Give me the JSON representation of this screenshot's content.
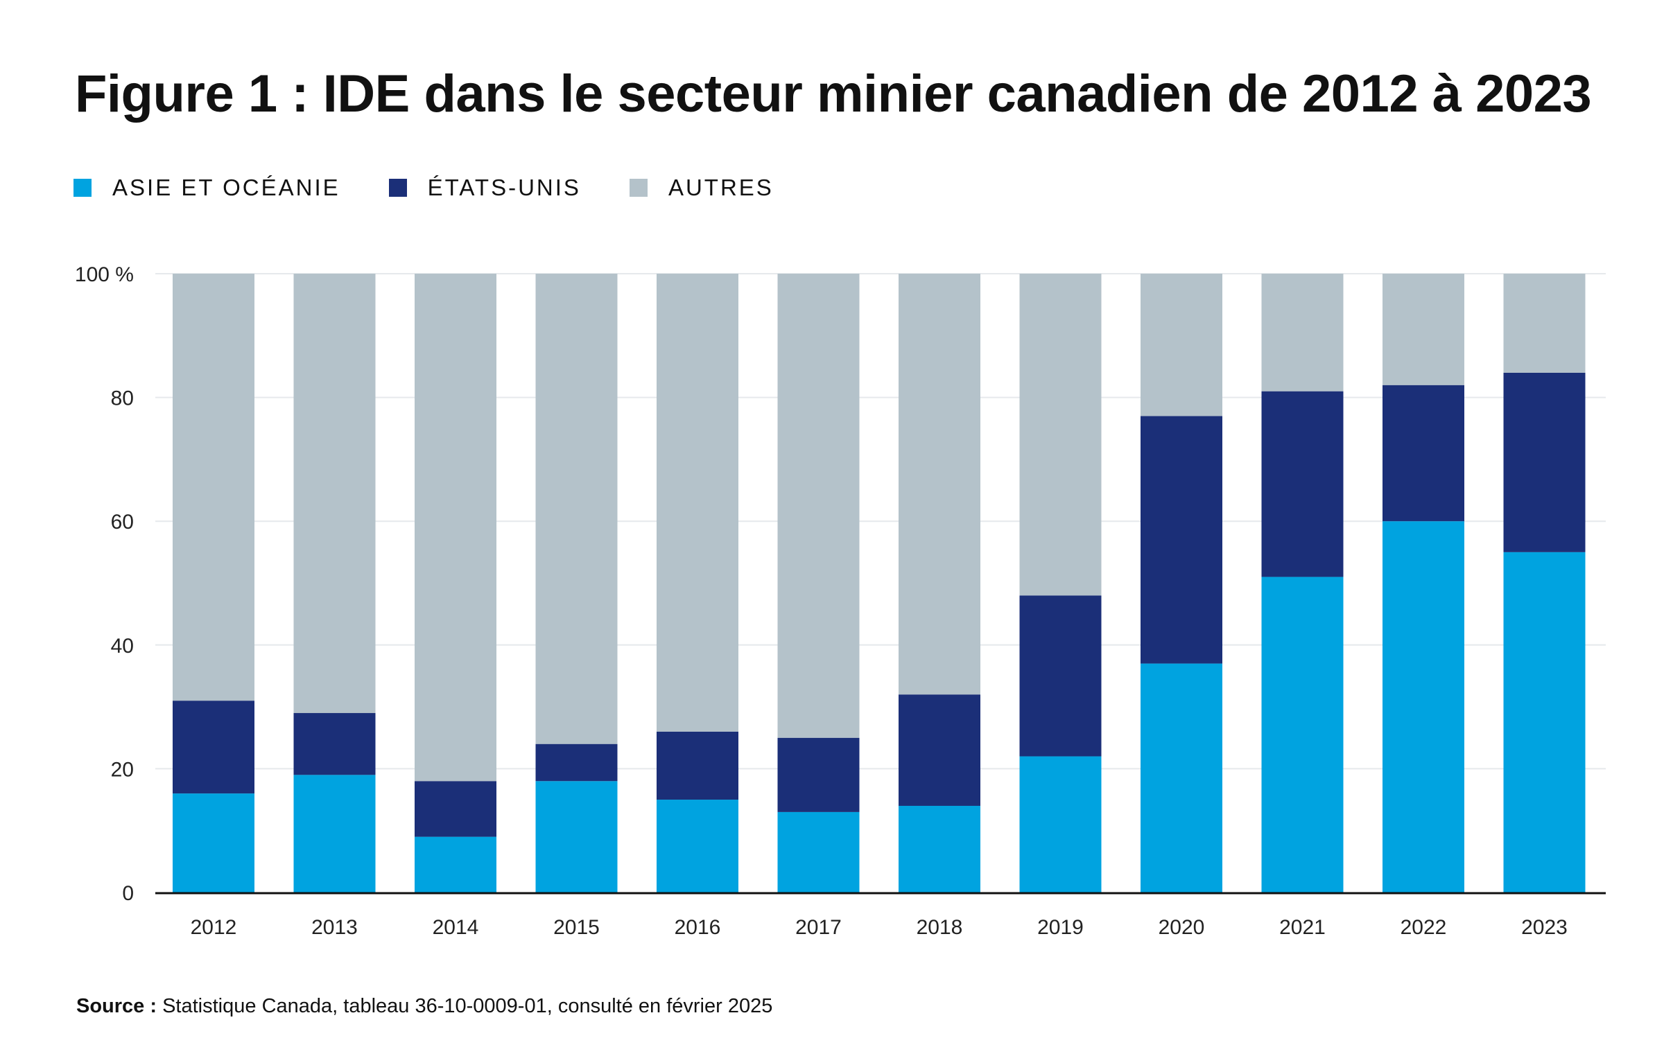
{
  "header": {
    "title": "Figure 1 : IDE dans le secteur minier canadien de 2012 à 2023"
  },
  "legend": {
    "items": [
      {
        "label": "ASIE ET OCÉANIE",
        "color": "#00A3E0"
      },
      {
        "label": "ÉTATS-UNIS",
        "color": "#1B2F78"
      },
      {
        "label": "AUTRES",
        "color": "#B4C2CA"
      }
    ]
  },
  "footer": {
    "source_label": "Source :",
    "source_text": "Statistique Canada, tableau 36-10-0009-01, consulté en février 2025"
  },
  "chart_data": {
    "type": "bar",
    "stacked": true,
    "title": "Figure 1 : IDE dans le secteur minier canadien de 2012 à 2023",
    "xlabel": "",
    "ylabel": "",
    "ylim": [
      0,
      100
    ],
    "yticks": [
      0,
      20,
      40,
      60,
      80,
      100
    ],
    "ytick_labels": [
      "0",
      "20",
      "40",
      "60",
      "80",
      "100 %"
    ],
    "grid": true,
    "legend_position": "top-left",
    "categories": [
      "2012",
      "2013",
      "2014",
      "2015",
      "2016",
      "2017",
      "2018",
      "2019",
      "2020",
      "2021",
      "2022",
      "2023"
    ],
    "series": [
      {
        "name": "ASIE ET OCÉANIE",
        "color": "#00A3E0",
        "values": [
          16,
          19,
          9,
          18,
          15,
          13,
          14,
          22,
          37,
          51,
          60,
          55
        ]
      },
      {
        "name": "ÉTATS-UNIS",
        "color": "#1B2F78",
        "values": [
          15,
          10,
          9,
          6,
          11,
          12,
          18,
          26,
          40,
          30,
          22,
          29
        ]
      },
      {
        "name": "AUTRES",
        "color": "#B4C2CA",
        "values": [
          69,
          71,
          82,
          76,
          74,
          75,
          68,
          52,
          23,
          19,
          18,
          16
        ]
      }
    ]
  }
}
